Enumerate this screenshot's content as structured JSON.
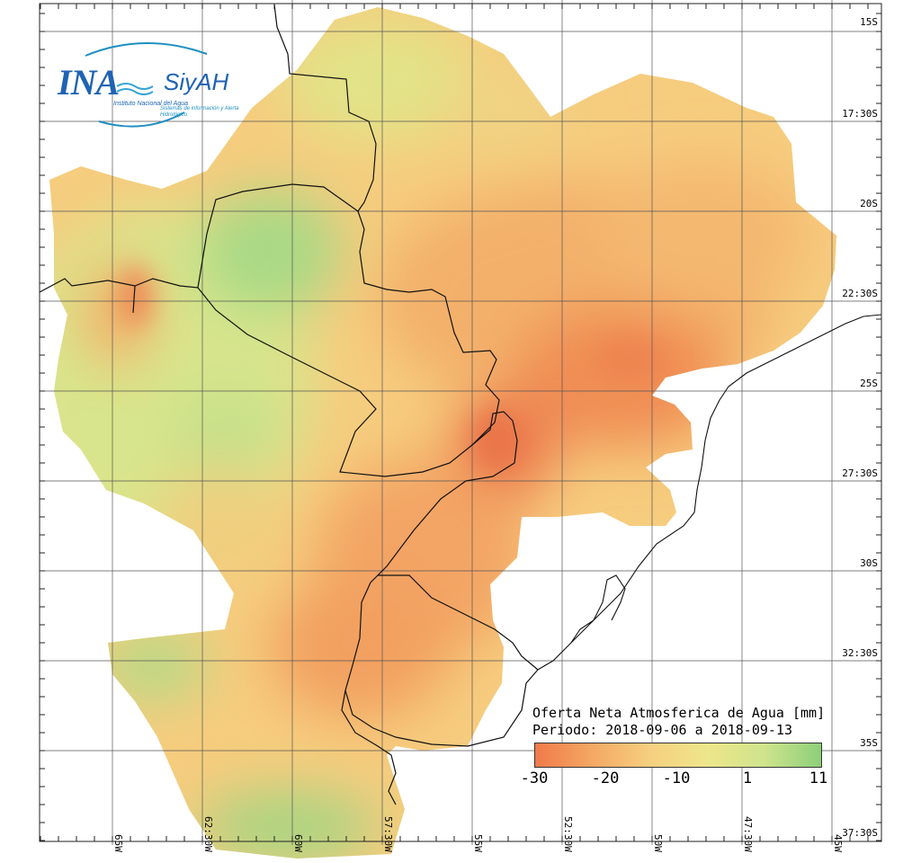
{
  "map": {
    "title_line1": "Oferta Neta Atmosferica de Agua [mm]",
    "title_line2": "Periodo: 2018-09-06 a 2018-09-13",
    "lat_labels": [
      "15S",
      "17:30S",
      "20S",
      "22:30S",
      "25S",
      "27:30S",
      "30S",
      "32:30S",
      "35S",
      "37:30S"
    ],
    "lon_labels": [
      "65W",
      "62:30W",
      "60W",
      "57:30W",
      "55W",
      "52:30W",
      "50W",
      "47:30W",
      "45W"
    ],
    "legend": {
      "ticks": [
        "-30",
        "-20",
        "-10",
        "1",
        "11"
      ],
      "colors": [
        "#f07a4a",
        "#f4a863",
        "#f6cf7f",
        "#eee68a",
        "#cfe48c",
        "#8dcf7a"
      ]
    }
  },
  "logo": {
    "name": "INA",
    "product": "SiyAH",
    "org": "Instituto Nacional del Agua",
    "tagline": "Sistemas de información y Alerta Hidrológico"
  }
}
